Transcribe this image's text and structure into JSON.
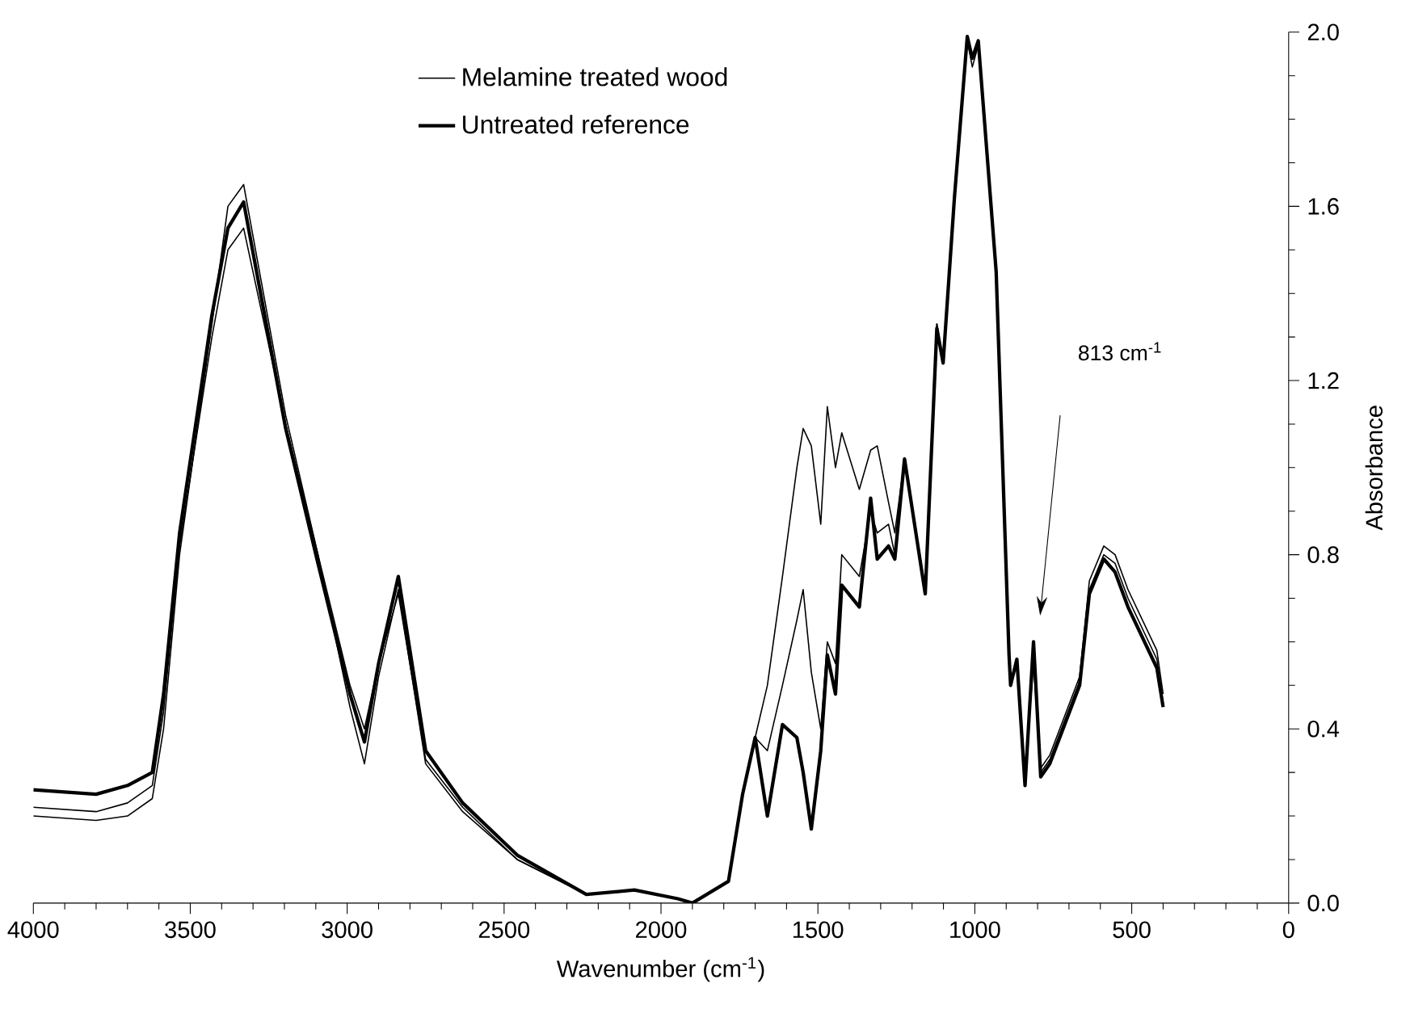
{
  "chart_data": {
    "type": "line",
    "xlabel": "Wavenumber (cm$^{-1}$)",
    "ylabel": "Absorbance",
    "xlim": [
      4000,
      0
    ],
    "xticks": [
      4000,
      3500,
      3000,
      2500,
      2000,
      1500,
      1000,
      500,
      0
    ],
    "ylim": [
      0,
      2.0
    ],
    "yticks": [
      {
        "value": 0,
        "label": "0.0"
      },
      {
        "value": 0.4,
        "label": "0.4"
      },
      {
        "value": 0.8,
        "label": "0.8"
      },
      {
        "value": 1.2,
        "label": "1.2"
      },
      {
        "value": 1.6,
        "label": "1.6"
      },
      {
        "value": 2.0,
        "label": "2.0"
      }
    ],
    "x": [
      4000,
      3800,
      3700,
      3621,
      3585,
      3534,
      3431,
      3380,
      3330,
      3196,
      3093,
      2991,
      2945,
      2900,
      2837,
      2750,
      2632,
      2458,
      2238,
      2085,
      1946,
      1900,
      1785,
      1740,
      1700,
      1661,
      1613,
      1567,
      1547,
      1521,
      1491,
      1470,
      1444,
      1424,
      1368,
      1332,
      1311,
      1275,
      1255,
      1224,
      1158,
      1121,
      1101,
      1065,
      1024,
      1008,
      989,
      932,
      891,
      886,
      866,
      840,
      813,
      790,
      761,
      666,
      635,
      589,
      553,
      512,
      420,
      400
    ],
    "series": [
      {
        "name": "Melamine treated wood",
        "color": "#000000",
        "values": [
          0.2,
          0.19,
          0.2,
          0.24,
          0.4,
          0.8,
          1.33,
          1.6,
          1.65,
          1.12,
          0.8,
          0.45,
          0.32,
          0.52,
          0.72,
          0.32,
          0.21,
          0.1,
          0.02,
          0.03,
          0.01,
          0.0,
          0.05,
          0.25,
          0.38,
          0.5,
          0.75,
          1.0,
          1.09,
          1.05,
          0.87,
          1.14,
          1.0,
          1.08,
          0.95,
          1.04,
          1.05,
          0.92,
          0.85,
          1.02,
          0.72,
          1.33,
          1.24,
          1.62,
          1.98,
          1.92,
          1.97,
          1.45,
          0.56,
          0.5,
          0.55,
          0.3,
          0.55,
          0.31,
          0.34,
          0.52,
          0.74,
          0.82,
          0.8,
          0.72,
          0.58,
          0.48
        ]
      },
      {
        "name": "Untreated reference",
        "color": "#000000",
        "values": [
          0.26,
          0.25,
          0.27,
          0.3,
          0.48,
          0.85,
          1.35,
          1.55,
          1.61,
          1.09,
          0.78,
          0.48,
          0.37,
          0.55,
          0.75,
          0.35,
          0.23,
          0.11,
          0.02,
          0.03,
          0.01,
          0.0,
          0.05,
          0.25,
          0.38,
          0.2,
          0.41,
          0.38,
          0.3,
          0.17,
          0.35,
          0.57,
          0.48,
          0.73,
          0.68,
          0.93,
          0.79,
          0.82,
          0.79,
          1.02,
          0.71,
          1.32,
          1.24,
          1.62,
          1.99,
          1.94,
          1.98,
          1.45,
          0.57,
          0.5,
          0.56,
          0.27,
          0.6,
          0.29,
          0.32,
          0.5,
          0.71,
          0.79,
          0.76,
          0.68,
          0.54,
          0.45
        ]
      },
      {
        "color": "#000000",
        "values": [
          0.22,
          0.21,
          0.23,
          0.27,
          0.44,
          0.82,
          1.3,
          1.5,
          1.55,
          1.1,
          0.8,
          0.5,
          0.4,
          0.55,
          0.71,
          0.33,
          0.22,
          0.1,
          0.02,
          0.03,
          0.01,
          0.0,
          0.05,
          0.25,
          0.38,
          0.35,
          0.5,
          0.65,
          0.72,
          0.53,
          0.4,
          0.6,
          0.55,
          0.8,
          0.75,
          0.9,
          0.85,
          0.87,
          0.8,
          1.02,
          0.72,
          1.33,
          1.24,
          1.62,
          1.99,
          1.94,
          1.98,
          1.45,
          0.57,
          0.5,
          0.56,
          0.28,
          0.58,
          0.3,
          0.33,
          0.51,
          0.72,
          0.8,
          0.78,
          0.7,
          0.56,
          0.46
        ]
      }
    ],
    "legend": "top left",
    "line_style": "solid",
    "grid": false,
    "annotations": [
      "813 cm$^{-1}$"
    ]
  }
}
